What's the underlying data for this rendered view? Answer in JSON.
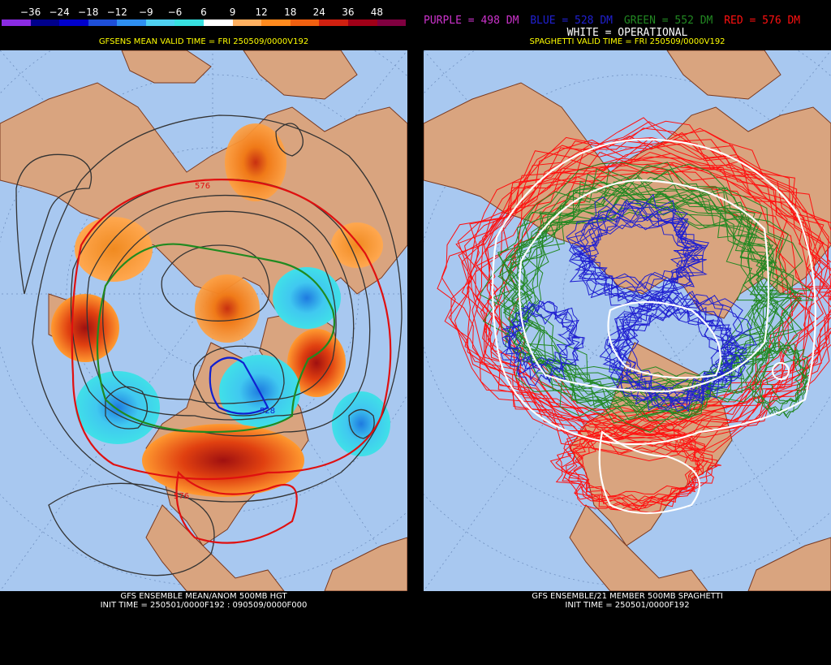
{
  "left": {
    "colorbar": {
      "labels": [
        "−36",
        "−24",
        "−18",
        "−12",
        "−9",
        "−6",
        "6",
        "9",
        "12",
        "18",
        "24",
        "36",
        "48"
      ],
      "colors": [
        "#8a2be2",
        "#00008b",
        "#0000cd",
        "#1e4fd8",
        "#2e8ff0",
        "#4fd0f0",
        "#38e0e0",
        "#ffffff",
        "#ffb060",
        "#ff8a1e",
        "#f06010",
        "#d02010",
        "#a00018",
        "#800040"
      ]
    },
    "valid_time": "GFSENS MEAN VALID TIME = FRI 250509/0000V192",
    "bottom_line1": "GFS ENSEMBLE MEAN/ANOM 500MB HGT",
    "bottom_line2": "INIT TIME = 250501/0000F192 : 090509/0000F000",
    "contour_labels": [
      "576",
      "528",
      "576"
    ]
  },
  "right": {
    "legend": {
      "purple": "PURPLE = 498 DM",
      "blue": "BLUE = 528 DM",
      "green": "GREEN = 552 DM",
      "red": "RED = 576 DM",
      "white": "WHITE = OPERATIONAL"
    },
    "legend_colors": {
      "purple": "#cc33cc",
      "blue": "#2020d0",
      "green": "#228822",
      "red": "#ff1010",
      "white": "#ffffff"
    },
    "valid_time": "SPAGHETTI VALID TIME = FRI 250509/0000V192",
    "bottom_line1": "GFS ENSEMBLE/21 MEMBER 500MB SPAGHETTI",
    "bottom_line2": "INIT TIME = 250501/0000F192"
  },
  "colors": {
    "ocean": "#a8c8f0",
    "land": "#d9a47f",
    "border": "#7a3a20"
  }
}
